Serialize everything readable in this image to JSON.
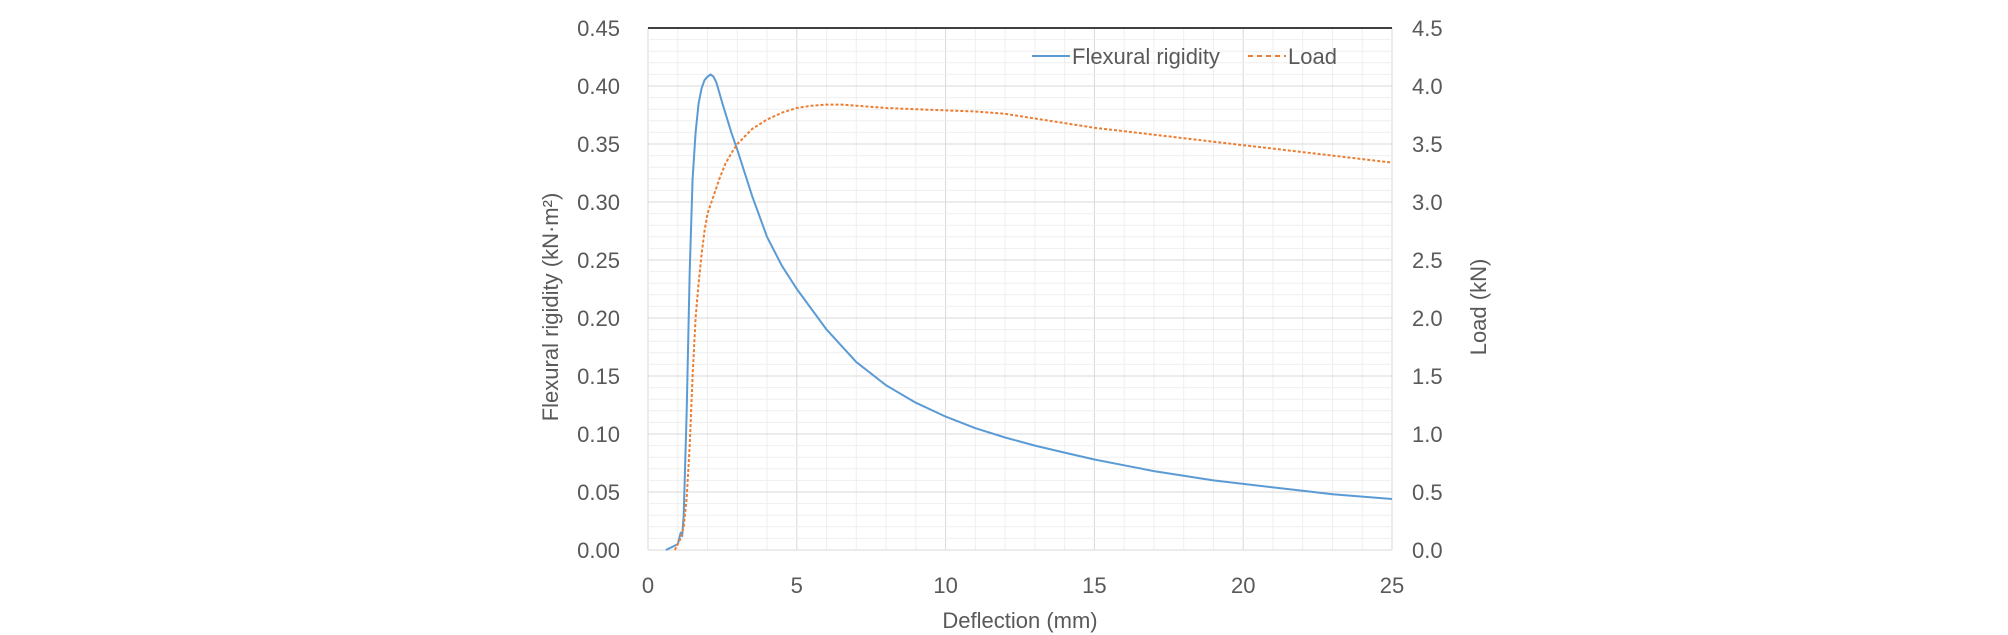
{
  "chart_data": {
    "type": "line",
    "title": "",
    "xlabel": "Deflection (mm)",
    "ylabel": "Flexural rigidity (kN·m²)",
    "y2label": "Load (kN)",
    "xlim": [
      0,
      25
    ],
    "ylim": [
      0,
      0.45
    ],
    "y2lim": [
      0,
      4.5
    ],
    "x_ticks": [
      "0",
      "5",
      "10",
      "15",
      "20",
      "25"
    ],
    "y_ticks": [
      "0.00",
      "0.05",
      "0.10",
      "0.15",
      "0.20",
      "0.25",
      "0.30",
      "0.35",
      "0.40",
      "0.45"
    ],
    "y2_ticks": [
      "0.0",
      "0.5",
      "1.0",
      "1.5",
      "2.0",
      "2.5",
      "3.0",
      "3.5",
      "4.0",
      "4.5"
    ],
    "grid": true,
    "legend_position": "top-right",
    "series": [
      {
        "name": "Flexural rigidity",
        "axis": "left",
        "color": "#5B9BD5",
        "line_style": "solid",
        "x": [
          0.6,
          1.0,
          1.1,
          1.15,
          1.2,
          1.3,
          1.4,
          1.5,
          1.6,
          1.7,
          1.8,
          1.9,
          2.0,
          2.1,
          2.2,
          2.3,
          2.5,
          2.8,
          3.0,
          3.5,
          4.0,
          4.5,
          5.0,
          6.0,
          7.0,
          8.0,
          9.0,
          10.0,
          11.0,
          12.0,
          13.0,
          14.0,
          15.0,
          16.0,
          17.0,
          18.0,
          19.0,
          20.0,
          21.0,
          22.0,
          23.0,
          24.0,
          25.0
        ],
        "values": [
          0.0,
          0.005,
          0.015,
          0.012,
          0.03,
          0.12,
          0.24,
          0.32,
          0.36,
          0.385,
          0.398,
          0.405,
          0.408,
          0.41,
          0.408,
          0.403,
          0.385,
          0.36,
          0.345,
          0.305,
          0.27,
          0.245,
          0.225,
          0.19,
          0.162,
          0.142,
          0.127,
          0.115,
          0.105,
          0.097,
          0.09,
          0.084,
          0.078,
          0.073,
          0.068,
          0.064,
          0.06,
          0.057,
          0.054,
          0.051,
          0.048,
          0.046,
          0.044
        ]
      },
      {
        "name": "Load",
        "axis": "right",
        "color": "#ED7D31",
        "line_style": "dashed",
        "x": [
          0.9,
          1.1,
          1.2,
          1.3,
          1.4,
          1.5,
          1.6,
          1.7,
          1.8,
          1.9,
          2.0,
          2.2,
          2.4,
          2.6,
          2.8,
          3.0,
          3.5,
          4.0,
          4.5,
          5.0,
          5.5,
          6.0,
          6.5,
          7.0,
          8.0,
          9.0,
          10.0,
          11.0,
          12.0,
          13.0,
          14.0,
          15.0,
          16.0,
          17.0,
          18.0,
          19.0,
          20.0,
          21.0,
          22.0,
          23.0,
          24.0,
          25.0
        ],
        "values": [
          0.0,
          0.1,
          0.2,
          0.45,
          0.9,
          1.5,
          2.0,
          2.3,
          2.55,
          2.75,
          2.9,
          3.05,
          3.2,
          3.33,
          3.42,
          3.5,
          3.63,
          3.71,
          3.77,
          3.81,
          3.83,
          3.84,
          3.84,
          3.83,
          3.81,
          3.8,
          3.79,
          3.78,
          3.76,
          3.72,
          3.68,
          3.64,
          3.61,
          3.58,
          3.55,
          3.52,
          3.49,
          3.46,
          3.43,
          3.4,
          3.37,
          3.34
        ]
      }
    ]
  }
}
